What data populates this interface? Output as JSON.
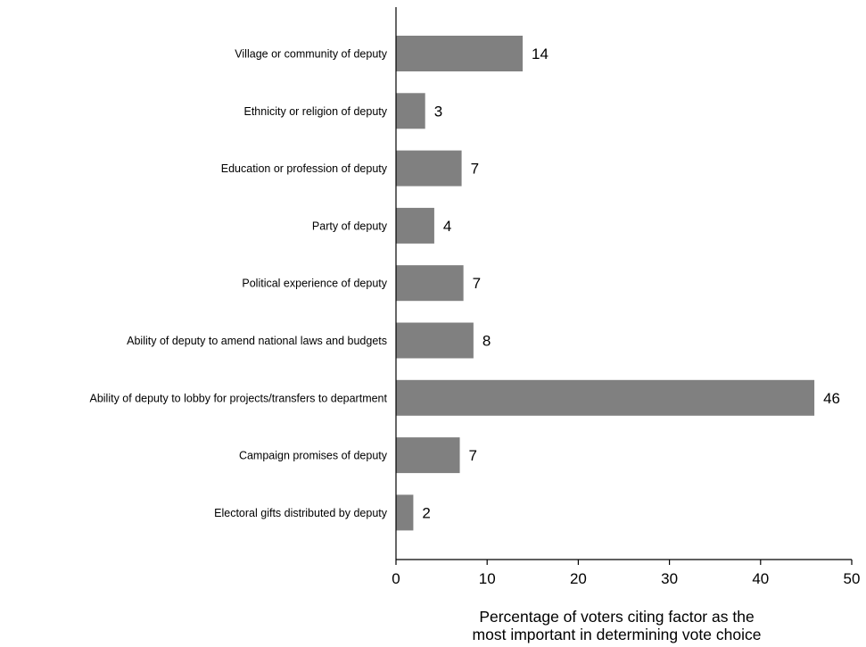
{
  "chart_data": {
    "type": "bar",
    "orientation": "horizontal",
    "categories": [
      "Village or community of deputy",
      "Ethnicity or religion of deputy",
      "Education or profession of deputy",
      "Party of deputy",
      "Political experience of deputy",
      "Ability of deputy to amend national laws and budgets",
      "Ability of deputy to lobby for projects/transfers to department",
      "Campaign promises of deputy",
      "Electoral gifts distributed by deputy"
    ],
    "values": [
      13.9,
      3.2,
      7.2,
      4.2,
      7.4,
      8.5,
      45.9,
      7.0,
      1.9
    ],
    "data_labels": [
      "14",
      "3",
      "7",
      "4",
      "7",
      "8",
      "46",
      "7",
      "2"
    ],
    "xlim": [
      0,
      50
    ],
    "xticks": [
      0,
      10,
      20,
      30,
      40,
      50
    ],
    "xlabel_lines": [
      "Percentage of voters citing factor as the",
      "most important in determining vote choice"
    ],
    "bar_color": "#808080",
    "grid": false
  }
}
